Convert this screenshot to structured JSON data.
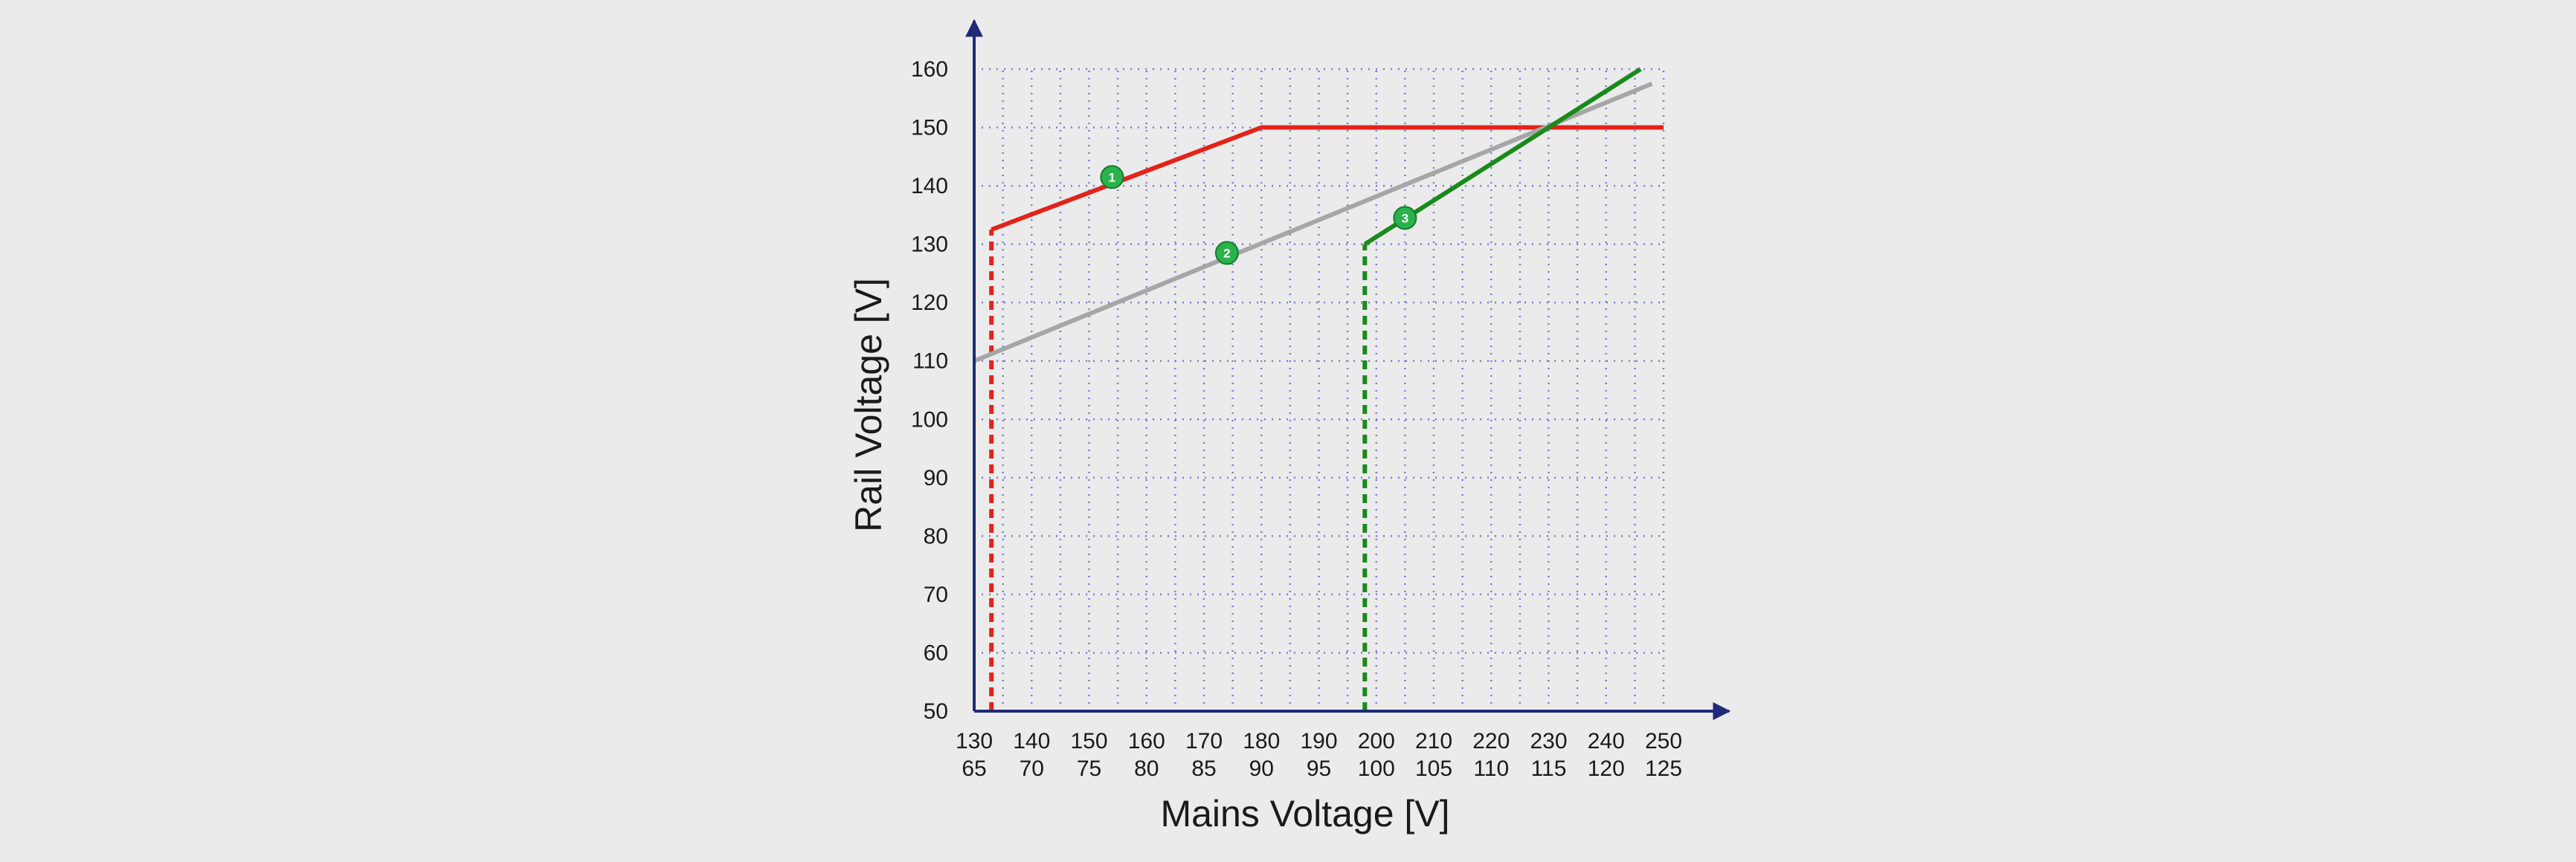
{
  "chart_data": {
    "type": "line",
    "xlabel": "Mains Voltage [V]",
    "ylabel": "Rail Voltage [V]",
    "xlim": [
      130,
      250
    ],
    "ylim": [
      50,
      160
    ],
    "x_ticks": [
      {
        "x": 130,
        "top": "130",
        "bottom": "65"
      },
      {
        "x": 140,
        "top": "140",
        "bottom": "70"
      },
      {
        "x": 150,
        "top": "150",
        "bottom": "75"
      },
      {
        "x": 160,
        "top": "160",
        "bottom": "80"
      },
      {
        "x": 170,
        "top": "170",
        "bottom": "85"
      },
      {
        "x": 180,
        "top": "180",
        "bottom": "90"
      },
      {
        "x": 190,
        "top": "190",
        "bottom": "95"
      },
      {
        "x": 200,
        "top": "200",
        "bottom": "100"
      },
      {
        "x": 210,
        "top": "210",
        "bottom": "105"
      },
      {
        "x": 220,
        "top": "220",
        "bottom": "110"
      },
      {
        "x": 230,
        "top": "230",
        "bottom": "115"
      },
      {
        "x": 240,
        "top": "240",
        "bottom": "120"
      },
      {
        "x": 250,
        "top": "250",
        "bottom": "125"
      }
    ],
    "y_ticks": [
      50,
      60,
      70,
      80,
      90,
      100,
      110,
      120,
      130,
      140,
      150,
      160
    ],
    "grid": true,
    "grid_style": "dotted",
    "grid_color": "#7a7ad6",
    "axis_color": "#1f2a78",
    "series": [
      {
        "id": "red",
        "color": "#e2231a",
        "dashed": false,
        "points": [
          [
            133,
            132.5
          ],
          [
            180,
            150
          ],
          [
            250,
            150
          ]
        ]
      },
      {
        "id": "red-dashed",
        "color": "#e2231a",
        "dashed": true,
        "points": [
          [
            133,
            50
          ],
          [
            133,
            132.5
          ]
        ]
      },
      {
        "id": "gray",
        "color": "#a6a6a6",
        "dashed": false,
        "points": [
          [
            130,
            110
          ],
          [
            248,
            157.5
          ]
        ]
      },
      {
        "id": "green",
        "color": "#1a8a1a",
        "dashed": false,
        "points": [
          [
            198,
            130
          ],
          [
            246,
            160
          ]
        ]
      },
      {
        "id": "green-dashed",
        "color": "#1a8a1a",
        "dashed": true,
        "points": [
          [
            198,
            50
          ],
          [
            198,
            130
          ]
        ]
      }
    ],
    "markers": [
      {
        "label": "1",
        "x": 154,
        "y": 141.5
      },
      {
        "label": "2",
        "x": 174,
        "y": 128.5
      },
      {
        "label": "3",
        "x": 205,
        "y": 134.5
      }
    ],
    "marker_color": "#2bb24c"
  }
}
